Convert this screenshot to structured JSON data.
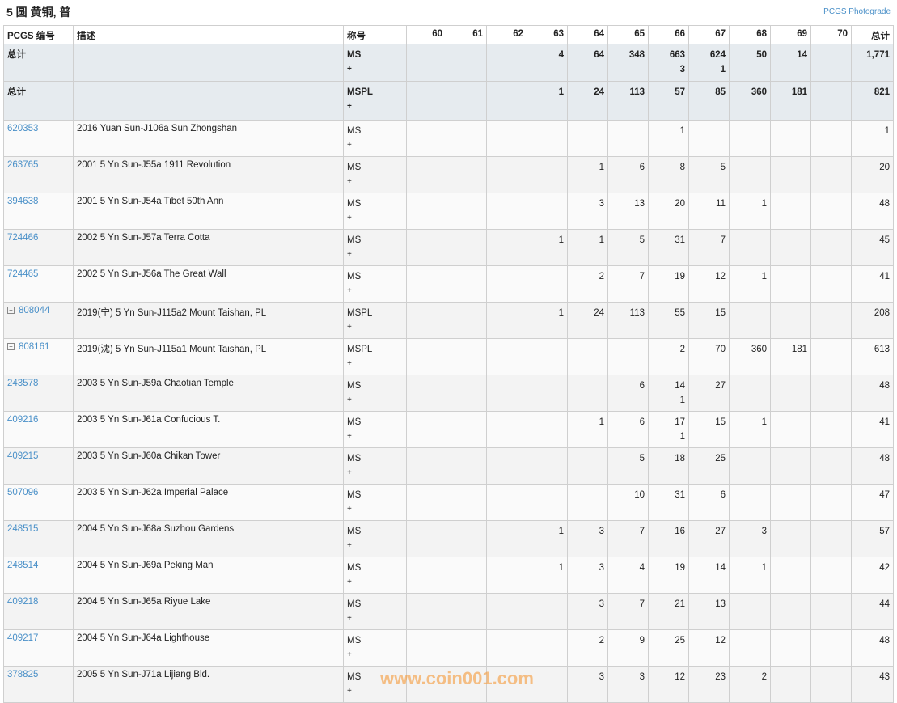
{
  "title": "5 圆 黄铜, 普",
  "photograde_link": "PCGS Photograde",
  "headers": {
    "pcgs": "PCGS 编号",
    "desc": "描述",
    "designation": "称号",
    "grades": [
      "60",
      "61",
      "62",
      "63",
      "64",
      "65",
      "66",
      "67",
      "68",
      "69",
      "70"
    ],
    "total": "总计"
  },
  "totals": [
    {
      "label": "总计",
      "designation": "MS",
      "plus": "+",
      "grades": [
        "",
        "",
        "",
        "4",
        "64",
        "348",
        "663\n3",
        "624\n1",
        "50",
        "14",
        ""
      ],
      "total": "1,771"
    },
    {
      "label": "总计",
      "designation": "MSPL",
      "plus": "+",
      "grades": [
        "",
        "",
        "",
        "1",
        "24",
        "113",
        "57",
        "85",
        "360",
        "181",
        ""
      ],
      "total": "821"
    }
  ],
  "rows": [
    {
      "id": "620353",
      "desc": "2016 Yuan Sun-J106a Sun Zhongshan",
      "designation": "MS",
      "plus": "+",
      "expand": false,
      "grades": [
        "",
        "",
        "",
        "",
        "",
        "",
        "1",
        "",
        "",
        "",
        ""
      ],
      "total": "1"
    },
    {
      "id": "263765",
      "desc": "2001 5 Yn Sun-J55a 1911 Revolution",
      "designation": "MS",
      "plus": "+",
      "expand": false,
      "grades": [
        "",
        "",
        "",
        "",
        "1",
        "6",
        "8",
        "5",
        "",
        "",
        ""
      ],
      "total": "20"
    },
    {
      "id": "394638",
      "desc": "2001 5 Yn Sun-J54a Tibet 50th Ann",
      "designation": "MS",
      "plus": "+",
      "expand": false,
      "grades": [
        "",
        "",
        "",
        "",
        "3",
        "13",
        "20",
        "11",
        "1",
        "",
        ""
      ],
      "total": "48"
    },
    {
      "id": "724466",
      "desc": "2002 5 Yn Sun-J57a Terra Cotta",
      "designation": "MS",
      "plus": "+",
      "expand": false,
      "grades": [
        "",
        "",
        "",
        "1",
        "1",
        "5",
        "31",
        "7",
        "",
        "",
        ""
      ],
      "total": "45"
    },
    {
      "id": "724465",
      "desc": "2002 5 Yn Sun-J56a The Great Wall",
      "designation": "MS",
      "plus": "+",
      "expand": false,
      "grades": [
        "",
        "",
        "",
        "",
        "2",
        "7",
        "19",
        "12",
        "1",
        "",
        ""
      ],
      "total": "41"
    },
    {
      "id": "808044",
      "desc": "2019(宁) 5 Yn Sun-J115a2 Mount Taishan, PL",
      "designation": "MSPL",
      "plus": "+",
      "expand": true,
      "grades": [
        "",
        "",
        "",
        "1",
        "24",
        "113",
        "55",
        "15",
        "",
        "",
        ""
      ],
      "total": "208"
    },
    {
      "id": "808161",
      "desc": "2019(沈) 5 Yn Sun-J115a1 Mount Taishan, PL",
      "designation": "MSPL",
      "plus": "+",
      "expand": true,
      "grades": [
        "",
        "",
        "",
        "",
        "",
        "",
        "2",
        "70",
        "360",
        "181",
        ""
      ],
      "total": "613"
    },
    {
      "id": "243578",
      "desc": "2003 5 Yn Sun-J59a Chaotian Temple",
      "designation": "MS",
      "plus": "+",
      "expand": false,
      "grades": [
        "",
        "",
        "",
        "",
        "",
        "6",
        "14\n1",
        "27",
        "",
        "",
        ""
      ],
      "total": "48"
    },
    {
      "id": "409216",
      "desc": "2003 5 Yn Sun-J61a Confucious T.",
      "designation": "MS",
      "plus": "+",
      "expand": false,
      "grades": [
        "",
        "",
        "",
        "",
        "1",
        "6",
        "17\n1",
        "15",
        "1",
        "",
        ""
      ],
      "total": "41"
    },
    {
      "id": "409215",
      "desc": "2003 5 Yn Sun-J60a Chikan Tower",
      "designation": "MS",
      "plus": "+",
      "expand": false,
      "grades": [
        "",
        "",
        "",
        "",
        "",
        "5",
        "18",
        "25",
        "",
        "",
        ""
      ],
      "total": "48"
    },
    {
      "id": "507096",
      "desc": "2003 5 Yn Sun-J62a Imperial Palace",
      "designation": "MS",
      "plus": "+",
      "expand": false,
      "grades": [
        "",
        "",
        "",
        "",
        "",
        "10",
        "31",
        "6",
        "",
        "",
        ""
      ],
      "total": "47"
    },
    {
      "id": "248515",
      "desc": "2004 5 Yn Sun-J68a Suzhou Gardens",
      "designation": "MS",
      "plus": "+",
      "expand": false,
      "grades": [
        "",
        "",
        "",
        "1",
        "3",
        "7",
        "16",
        "27",
        "3",
        "",
        ""
      ],
      "total": "57"
    },
    {
      "id": "248514",
      "desc": "2004 5 Yn Sun-J69a Peking Man",
      "designation": "MS",
      "plus": "+",
      "expand": false,
      "grades": [
        "",
        "",
        "",
        "1",
        "3",
        "4",
        "19",
        "14",
        "1",
        "",
        ""
      ],
      "total": "42"
    },
    {
      "id": "409218",
      "desc": "2004 5 Yn Sun-J65a Riyue Lake",
      "designation": "MS",
      "plus": "+",
      "expand": false,
      "grades": [
        "",
        "",
        "",
        "",
        "3",
        "7",
        "21",
        "13",
        "",
        "",
        ""
      ],
      "total": "44"
    },
    {
      "id": "409217",
      "desc": "2004 5 Yn Sun-J64a Lighthouse",
      "designation": "MS",
      "plus": "+",
      "expand": false,
      "grades": [
        "",
        "",
        "",
        "",
        "2",
        "9",
        "25",
        "12",
        "",
        "",
        ""
      ],
      "total": "48"
    },
    {
      "id": "378825",
      "desc": "2005 5 Yn Sun-J71a Lijiang Bld.",
      "designation": "MS",
      "plus": "+",
      "expand": false,
      "grades": [
        "",
        "",
        "",
        "",
        "3",
        "3",
        "12",
        "23",
        "2",
        "",
        ""
      ],
      "total": "43"
    }
  ],
  "expand_icon": "plus-square-icon",
  "watermark": "www.coin001.com",
  "colors": {
    "link": "#4a90c8",
    "total_row_bg": "#e6ebef",
    "watermark": "#f5a046"
  }
}
